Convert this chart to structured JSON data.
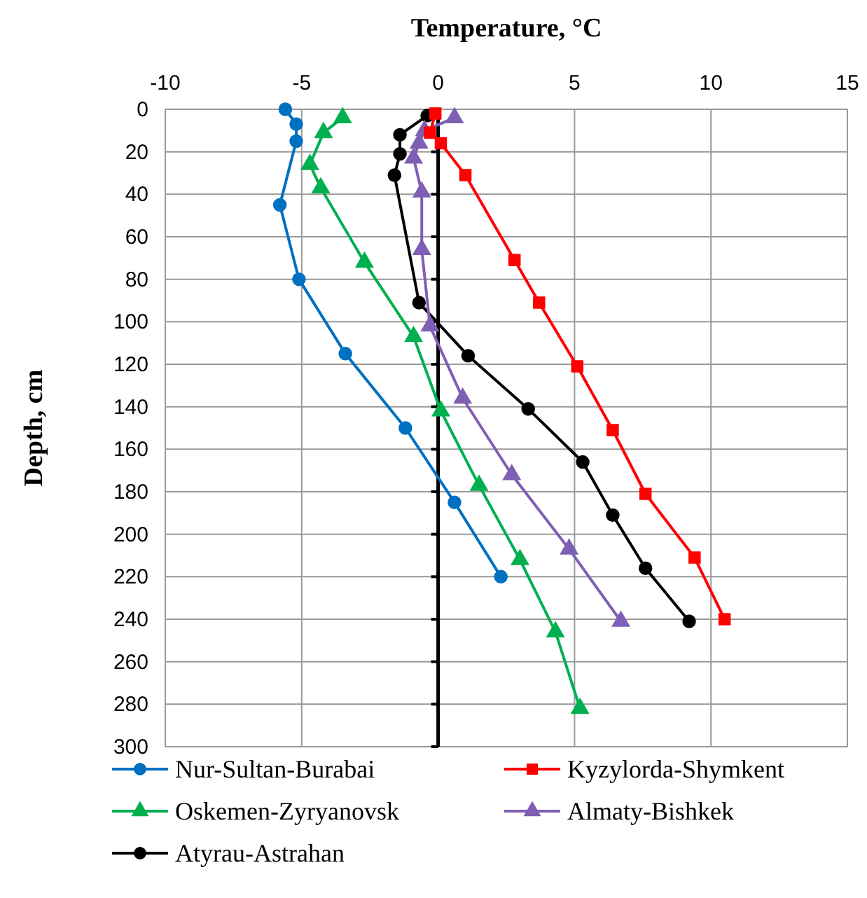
{
  "chart_data": {
    "type": "line",
    "xlabel": "Temperature, °C",
    "ylabel": "Depth, cm",
    "xlim": [
      -10,
      15
    ],
    "xticks": [
      -10,
      -5,
      0,
      5,
      10,
      15
    ],
    "ylim": [
      300,
      0
    ],
    "yticks": [
      0,
      20,
      40,
      60,
      80,
      100,
      120,
      140,
      160,
      180,
      200,
      220,
      240,
      260,
      280,
      300
    ],
    "grid": true,
    "legend": "bottom",
    "series": [
      {
        "name": "Nur-Sultan-Burabai",
        "color": "#0070c0",
        "marker": "circle",
        "x": [
          -5.6,
          -5.2,
          -5.2,
          -5.8,
          -5.1,
          -3.4,
          -1.2,
          0.6,
          2.3
        ],
        "values": [
          0,
          7,
          15,
          45,
          80,
          115,
          150,
          185,
          220
        ]
      },
      {
        "name": "Kyzylorda-Shymkent",
        "color": "#ff0000",
        "marker": "square",
        "x": [
          -0.1,
          -0.3,
          0.1,
          1.0,
          2.8,
          3.7,
          5.1,
          6.4,
          7.6,
          9.4,
          10.5
        ],
        "values": [
          2,
          11,
          16,
          31,
          71,
          91,
          121,
          151,
          181,
          211,
          240
        ]
      },
      {
        "name": "Oskemen-Zyryanovsk",
        "color": "#00b050",
        "marker": "triangle",
        "x": [
          -3.5,
          -4.2,
          -4.7,
          -4.3,
          -2.7,
          -0.9,
          0.1,
          1.5,
          3.0,
          4.3,
          5.2
        ],
        "values": [
          4,
          11,
          26,
          37,
          72,
          107,
          142,
          177,
          212,
          246,
          282
        ]
      },
      {
        "name": "Almaty-Bishkek",
        "color": "#7f5fb4",
        "marker": "triangle",
        "x": [
          0.6,
          -0.5,
          -0.7,
          -0.9,
          -0.6,
          -0.6,
          -0.3,
          0.9,
          2.7,
          4.8,
          6.7
        ],
        "values": [
          4,
          10,
          16,
          23,
          39,
          66,
          102,
          136,
          172,
          207,
          241
        ]
      },
      {
        "name": "Atyrau-Astrahan",
        "color": "#000000",
        "marker": "circle",
        "x": [
          -0.4,
          -1.4,
          -1.4,
          -1.6,
          -0.7,
          1.1,
          3.3,
          5.3,
          6.4,
          7.6,
          9.2
        ],
        "values": [
          3,
          12,
          21,
          31,
          91,
          116,
          141,
          166,
          191,
          216,
          241
        ]
      }
    ]
  }
}
